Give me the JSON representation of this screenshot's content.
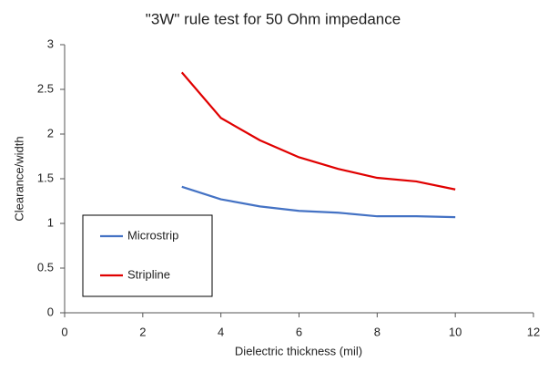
{
  "chart_data": {
    "type": "line",
    "title": "\"3W\" rule test for 50 Ohm impedance",
    "x_label": "Dielectric thickness (mil)",
    "y_label": "Clearance/width",
    "x": [
      3,
      4,
      5,
      6,
      7,
      8,
      9,
      10
    ],
    "series": [
      {
        "name": "Microstrip",
        "color": "#4472c4",
        "values": [
          1.41,
          1.27,
          1.19,
          1.14,
          1.12,
          1.08,
          1.08,
          1.07
        ]
      },
      {
        "name": "Stripline",
        "color": "#e00000",
        "values": [
          2.69,
          2.18,
          1.93,
          1.74,
          1.61,
          1.51,
          1.47,
          1.38
        ]
      }
    ],
    "xlim": [
      0,
      12
    ],
    "xticks": [
      0,
      2,
      4,
      6,
      8,
      10,
      12
    ],
    "ylim": [
      0,
      3
    ],
    "yticks": [
      0,
      0.5,
      1,
      1.5,
      2,
      2.5,
      3
    ],
    "grid": false,
    "legend": "lower left"
  }
}
